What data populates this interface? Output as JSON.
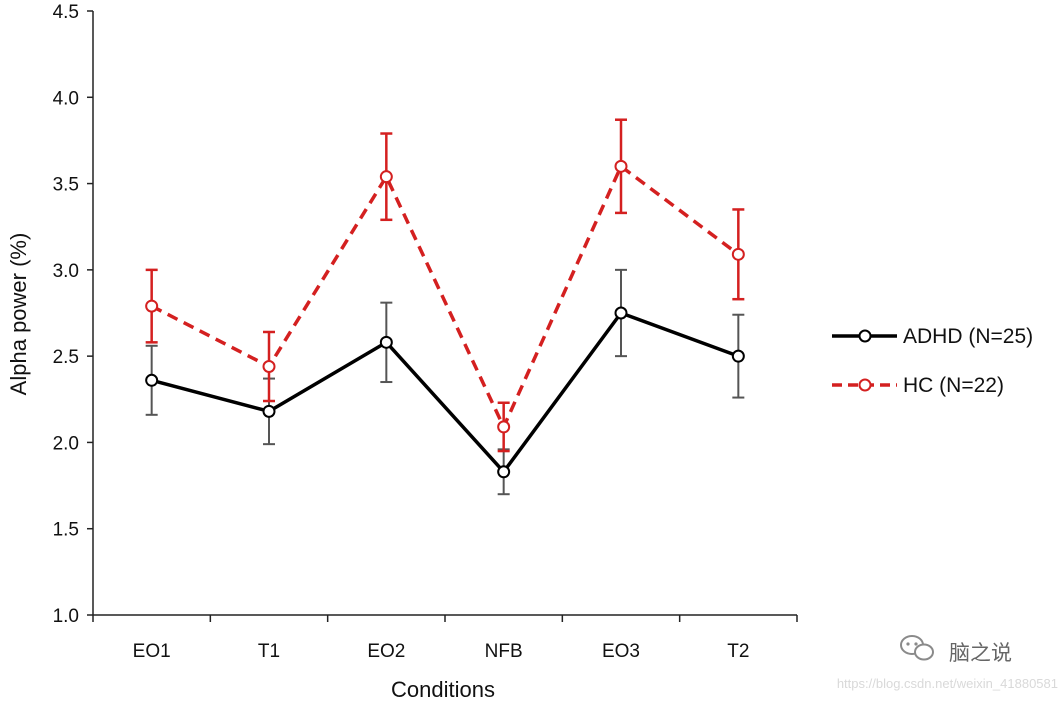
{
  "chart_data": {
    "type": "line",
    "title": "",
    "xlabel": "Conditions",
    "ylabel": "Alpha power (%)",
    "ylim": [
      1.0,
      4.5
    ],
    "y_ticks": [
      1.0,
      1.5,
      2.0,
      2.5,
      3.0,
      3.5,
      4.0,
      4.5
    ],
    "y_tick_labels": [
      "1.0",
      "1.5",
      "2.0",
      "2.5",
      "3.0",
      "3.5",
      "4.0",
      "4.5"
    ],
    "categories": [
      "EO1",
      "T1",
      "EO2",
      "NFB",
      "EO3",
      "T2"
    ],
    "grid": false,
    "legend_position": "right",
    "series": [
      {
        "name": "ADHD (N=25)",
        "color": "#000000",
        "line_style": "solid",
        "marker": "open-circle",
        "values": [
          2.36,
          2.18,
          2.58,
          1.83,
          2.75,
          2.5
        ],
        "error": [
          0.2,
          0.19,
          0.23,
          0.13,
          0.25,
          0.24
        ]
      },
      {
        "name": "HC (N=22)",
        "color": "#d42020",
        "line_style": "dashed",
        "marker": "open-circle",
        "values": [
          2.79,
          2.44,
          3.54,
          2.09,
          3.6,
          3.09
        ],
        "error": [
          0.21,
          0.2,
          0.25,
          0.14,
          0.27,
          0.26
        ]
      }
    ]
  },
  "watermark": {
    "brand": "脑之说",
    "url": "https://blog.csdn.net/weixin_41880581",
    "icon": "wechat-icon"
  }
}
